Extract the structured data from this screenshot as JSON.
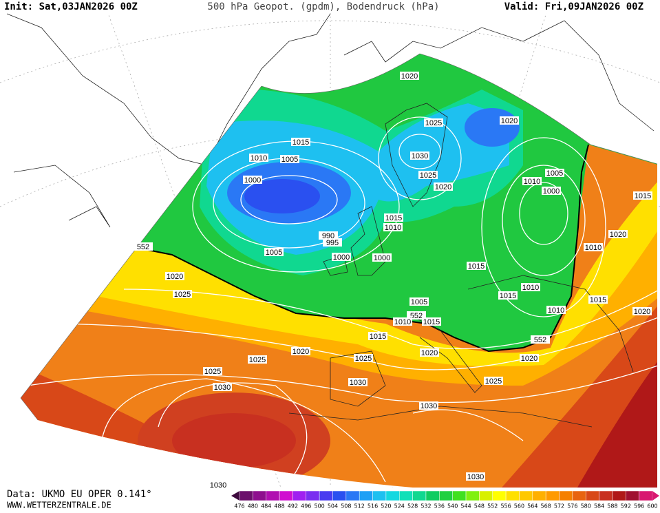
{
  "header": {
    "init": "Init: Sat,03JAN2026 00Z",
    "title": "500 hPa Geopot. (gpdm), Bodendruck (hPa)",
    "valid": "Valid: Fri,09JAN2026 00Z"
  },
  "footer": {
    "data": "Data: UKMO EU OPER 0.141°",
    "site": "WWW.WETTERZENTRALE.DE"
  },
  "colorbar": {
    "levels": [
      476,
      480,
      484,
      488,
      492,
      496,
      500,
      504,
      508,
      512,
      516,
      520,
      524,
      528,
      532,
      536,
      540,
      544,
      548,
      552,
      556,
      560,
      564,
      568,
      572,
      576,
      580,
      584,
      588,
      592,
      596,
      600
    ],
    "colors": [
      "#3d0a3d",
      "#6b0f6b",
      "#8e0f8e",
      "#b00fb0",
      "#d010d0",
      "#a020f0",
      "#7a2ff0",
      "#4a3cf0",
      "#2a50f0",
      "#2a78f5",
      "#1ea0f5",
      "#1ec0f0",
      "#14d8e0",
      "#10e0b8",
      "#10d890",
      "#10cc60",
      "#20d040",
      "#40e020",
      "#80f010",
      "#d8f000",
      "#ffff00",
      "#ffe000",
      "#ffc800",
      "#ffb000",
      "#ff9a00",
      "#f58000",
      "#e86410",
      "#d84818",
      "#c83020",
      "#b01818",
      "#a01030",
      "#d81870"
    ]
  },
  "isobar_labels": [
    1020,
    1025,
    1020,
    1015,
    1010,
    1005,
    1030,
    1025,
    1020,
    1005,
    1010,
    1000,
    1000,
    1015,
    1015,
    1010,
    990,
    995,
    1020,
    1005,
    1010,
    1000,
    1000,
    552,
    1020,
    1015,
    1025,
    1010,
    1015,
    1015,
    1005,
    552,
    1010,
    1020,
    1010,
    1015,
    1015,
    552,
    1020,
    1020,
    1025,
    1025,
    1020,
    1025,
    1030,
    1025,
    1030,
    1030,
    1030,
    1030
  ]
}
